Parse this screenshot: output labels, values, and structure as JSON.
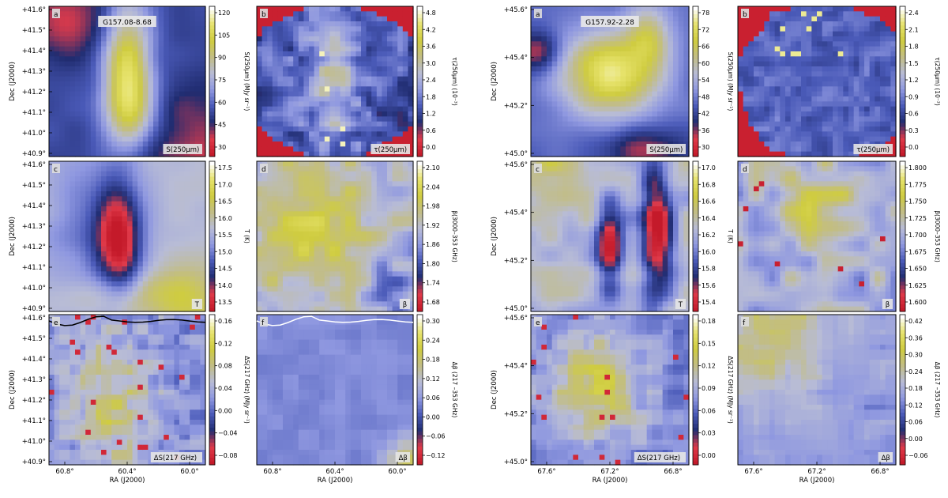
{
  "colormap": [
    "#c41a2a",
    "#e03a4a",
    "#202c70",
    "#4a5ab8",
    "#8f98e0",
    "#b8bcd6",
    "#c2bd86",
    "#cfcc40",
    "#e6e26a",
    "#ffffff"
  ],
  "chart_data": [
    {
      "type": "heatmap",
      "field": "G157.08-8.68",
      "xlabel": "RA (J2000)",
      "ylabel": "Dec (J2000)",
      "xticks": [
        "60.8°",
        "60.4°",
        "60.0°"
      ],
      "yticks": [
        "+41.6°",
        "+41.5°",
        "+41.4°",
        "+41.3°",
        "+41.2°",
        "+41.1°",
        "+41.0°",
        "+40.9°"
      ],
      "ylim": [
        40.88,
        41.6
      ],
      "panels": [
        {
          "letter": "a",
          "label": "S(250μm)",
          "colorbar_label": "S(250μm) (MJy sr⁻¹)",
          "ticks": [
            "120",
            "105",
            "90",
            "75",
            "60",
            "45",
            "30"
          ],
          "badge": "G157.08-8.68",
          "pattern": "filament_bright"
        },
        {
          "letter": "b",
          "label": "τ(250μm)",
          "colorbar_label": "τ(250μm) (10⁻³)",
          "ticks": [
            "4.8",
            "4.2",
            "3.6",
            "3.0",
            "2.4",
            "1.8",
            "1.2",
            "0.6",
            "0.0"
          ],
          "pattern": "clumpy_masked"
        },
        {
          "letter": "c",
          "label": "T",
          "colorbar_label": "T (K)",
          "ticks": [
            "17.5",
            "17.0",
            "16.5",
            "16.0",
            "15.5",
            "15.0",
            "14.5",
            "14.0",
            "13.5"
          ],
          "pattern": "filament_cold"
        },
        {
          "letter": "d",
          "label": "β",
          "colorbar_label": "β(3000–353 GHz)",
          "ticks": [
            "2.10",
            "2.04",
            "1.98",
            "1.92",
            "1.86",
            "1.80",
            "1.74",
            "1.68"
          ],
          "pattern": "beta_patchy"
        },
        {
          "letter": "e",
          "label": "ΔS(217 GHz)",
          "colorbar_label": "ΔS(217 GHz) (MJy sr⁻¹)",
          "ticks": [
            "0.16",
            "0.12",
            "0.08",
            "0.04",
            "0.00",
            "−0.04",
            "−0.08"
          ],
          "pattern": "blocky_warm",
          "contour": "black"
        },
        {
          "letter": "f",
          "label": "Δβ",
          "colorbar_label": "Δβ (217 –353 GHz)",
          "ticks": [
            "0.30",
            "0.24",
            "0.18",
            "0.12",
            "0.06",
            "0.00",
            "−0.06",
            "−0.12"
          ],
          "pattern": "blocky_cool",
          "contour": "white"
        }
      ]
    },
    {
      "type": "heatmap",
      "field": "G157.92-2.28",
      "xlabel": "RA (J2000)",
      "ylabel": "Dec (J2000)",
      "xticks": [
        "67.6°",
        "67.2°",
        "66.8°"
      ],
      "yticks": [
        "+45.6°",
        "+45.4°",
        "+45.2°",
        "+45.0°"
      ],
      "ylim": [
        44.88,
        45.62
      ],
      "panels": [
        {
          "letter": "a",
          "label": "S(250μm)",
          "colorbar_label": "S(250μm) (MJy sr⁻¹)",
          "ticks": [
            "78",
            "72",
            "66",
            "60",
            "54",
            "48",
            "42",
            "36",
            "30"
          ],
          "badge": "G157.92-2.28",
          "pattern": "blob_bright"
        },
        {
          "letter": "b",
          "label": "τ(250μm)",
          "colorbar_label": "τ(250μm) (10⁻³)",
          "ticks": [
            "2.4",
            "2.1",
            "1.8",
            "1.5",
            "1.2",
            "0.9",
            "0.6",
            "0.3",
            "0.0"
          ],
          "pattern": "clumpy_masked2"
        },
        {
          "letter": "c",
          "label": "T",
          "colorbar_label": "T (K)",
          "ticks": [
            "17.0",
            "16.8",
            "16.6",
            "16.4",
            "16.2",
            "16.0",
            "15.8",
            "15.6",
            "15.4"
          ],
          "pattern": "filament_cold2"
        },
        {
          "letter": "d",
          "label": "β",
          "colorbar_label": "β(3000–353 GHz)",
          "ticks": [
            "1.800",
            "1.775",
            "1.750",
            "1.725",
            "1.700",
            "1.675",
            "1.650",
            "1.625",
            "1.600"
          ],
          "pattern": "beta_patchy2"
        },
        {
          "letter": "e",
          "label": "ΔS(217 GHz)",
          "colorbar_label": "ΔS(217 GHz) (MJy sr⁻¹)",
          "ticks": [
            "0.18",
            "0.15",
            "0.12",
            "0.09",
            "0.06",
            "0.03",
            "0.00"
          ],
          "pattern": "blocky_warm2"
        },
        {
          "letter": "f",
          "label": "Δβ",
          "colorbar_label": "Δβ (217 –353 GHz)",
          "ticks": [
            "0.42",
            "0.36",
            "0.30",
            "0.24",
            "0.18",
            "0.12",
            "0.06",
            "0.00",
            "−0.06"
          ],
          "pattern": "blocky_cool2"
        }
      ]
    }
  ]
}
